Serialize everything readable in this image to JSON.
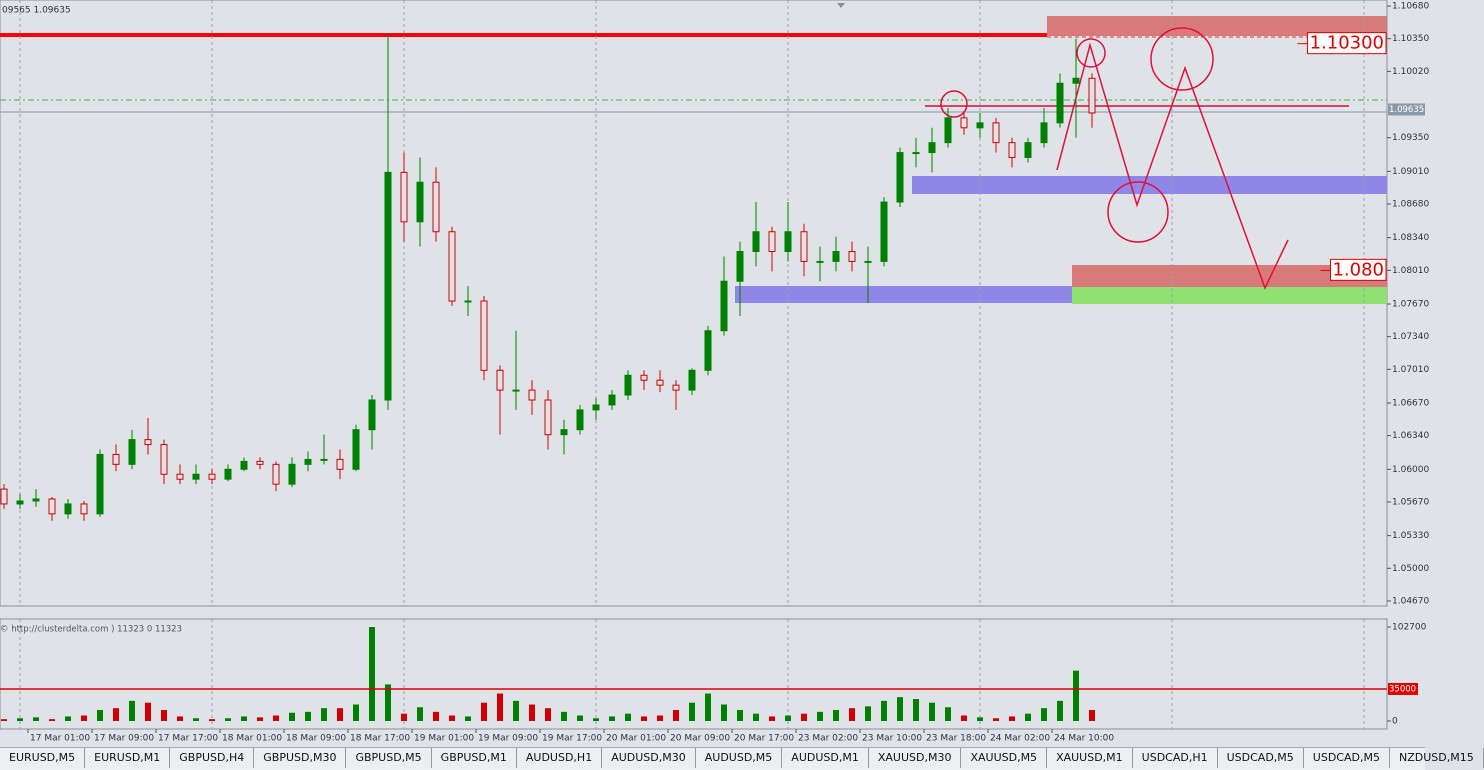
{
  "header": {
    "text": "09565 1.09635"
  },
  "chart_data": [
    {
      "type": "candlestick",
      "categories": [
        null,
        null,
        null,
        "17 Mar 01:00",
        null,
        null,
        null,
        "17 Mar 09:00",
        null,
        null,
        null,
        "17 Mar 17:00",
        null,
        null,
        null,
        "18 Mar 01:00",
        null,
        null,
        null,
        "18 Mar 09:00",
        null,
        null,
        null,
        "18 Mar 17:00",
        null,
        null,
        null,
        "19 Mar 01:00",
        null,
        null,
        null,
        "19 Mar 09:00",
        null,
        null,
        null,
        "19 Mar 17:00",
        null,
        null,
        null,
        "20 Mar 01:00",
        null,
        null,
        null,
        "20 Mar 09:00",
        null,
        null,
        null,
        "20 Mar 17:00",
        null,
        null,
        null,
        "23 Mar 02:00",
        null,
        null,
        null,
        "23 Mar 10:00",
        null,
        null,
        null,
        "23 Mar 18:00",
        null,
        null,
        null,
        "24 Mar 02:00",
        null,
        null,
        null,
        "24 Mar 10:00",
        null
      ],
      "open": [
        1.058,
        1.0565,
        1.0568,
        1.057,
        1.0555,
        1.0565,
        1.0555,
        1.0615,
        1.0605,
        1.063,
        1.0625,
        1.0595,
        1.059,
        1.0595,
        1.059,
        1.06,
        1.0608,
        1.0605,
        1.0585,
        1.0605,
        1.061,
        1.061,
        1.06,
        1.064,
        1.067,
        1.09,
        1.085,
        1.089,
        1.084,
        1.077,
        1.077,
        1.07,
        1.068,
        1.068,
        1.067,
        1.0635,
        1.064,
        1.066,
        1.0665,
        1.0675,
        1.0695,
        1.069,
        1.0685,
        1.068,
        1.07,
        1.074,
        1.079,
        1.082,
        1.084,
        1.082,
        1.084,
        1.081,
        1.081,
        1.082,
        1.081,
        1.081,
        1.087,
        1.092,
        1.092,
        1.093,
        1.0955,
        1.0945,
        1.095,
        1.093,
        1.0915,
        1.093,
        1.095,
        1.099,
        1.0995
      ],
      "high": [
        1.0585,
        1.0575,
        1.058,
        1.0572,
        1.057,
        1.0568,
        1.062,
        1.0625,
        1.064,
        1.0652,
        1.063,
        1.0605,
        1.0605,
        1.06,
        1.0605,
        1.0612,
        1.0612,
        1.0608,
        1.0612,
        1.0618,
        1.0635,
        1.062,
        1.0645,
        1.0675,
        1.104,
        1.092,
        1.0915,
        1.0905,
        1.0845,
        1.0785,
        1.0775,
        1.0705,
        1.074,
        1.069,
        1.068,
        1.065,
        1.0665,
        1.0672,
        1.068,
        1.07,
        1.07,
        1.07,
        1.069,
        1.0702,
        1.0745,
        1.0815,
        1.083,
        1.087,
        1.0845,
        1.087,
        1.0848,
        1.0825,
        1.0835,
        1.083,
        1.0825,
        1.0875,
        1.0925,
        1.0935,
        1.0945,
        1.0965,
        1.0962,
        1.096,
        1.0955,
        1.0935,
        1.0935,
        1.0965,
        1.1,
        1.1035,
        1.1
      ],
      "low": [
        1.056,
        1.056,
        1.0562,
        1.0548,
        1.055,
        1.0548,
        1.0552,
        1.0598,
        1.06,
        1.0615,
        1.0585,
        1.0585,
        1.0585,
        1.0585,
        1.0588,
        1.0598,
        1.06,
        1.0578,
        1.0582,
        1.0598,
        1.0605,
        1.059,
        1.0598,
        1.062,
        1.066,
        1.083,
        1.0825,
        1.083,
        1.0765,
        1.0755,
        1.069,
        1.0635,
        1.066,
        1.0655,
        1.062,
        1.0615,
        1.0635,
        1.065,
        1.066,
        1.067,
        1.068,
        1.0678,
        1.066,
        1.0675,
        1.0695,
        1.0735,
        1.0755,
        1.0805,
        1.08,
        1.081,
        1.0795,
        1.079,
        1.08,
        1.08,
        1.0768,
        1.0805,
        1.0865,
        1.0905,
        1.09,
        1.0925,
        1.0938,
        1.0935,
        1.092,
        1.0905,
        1.091,
        1.0925,
        1.0945,
        1.0935,
        1.0945
      ],
      "close": [
        1.0565,
        1.0568,
        1.057,
        1.0555,
        1.0565,
        1.0555,
        1.0615,
        1.0605,
        1.063,
        1.0625,
        1.0595,
        1.059,
        1.0595,
        1.059,
        1.06,
        1.0608,
        1.0605,
        1.0585,
        1.0605,
        1.061,
        1.061,
        1.06,
        1.064,
        1.067,
        1.09,
        1.085,
        1.089,
        1.084,
        1.077,
        1.077,
        1.07,
        1.068,
        1.068,
        1.067,
        1.0635,
        1.064,
        1.066,
        1.0665,
        1.0675,
        1.0695,
        1.069,
        1.0685,
        1.068,
        1.07,
        1.074,
        1.079,
        1.082,
        1.084,
        1.082,
        1.084,
        1.081,
        1.081,
        1.082,
        1.081,
        1.081,
        1.087,
        1.092,
        1.092,
        1.093,
        1.0955,
        1.0945,
        1.095,
        1.093,
        1.0915,
        1.093,
        1.095,
        1.099,
        1.0995,
        1.096
      ],
      "up_color": "#008000",
      "down_color": "#d00000",
      "ylim": [
        1.04619,
        1.10741
      ],
      "yticks": [
        {
          "value": 1.1068,
          "label": "1.10680"
        },
        {
          "value": 1.1035,
          "label": "1.10350"
        },
        {
          "value": 1.1002,
          "label": "1.10020"
        },
        {
          "value": 1.0935,
          "label": "1.09350"
        },
        {
          "value": 1.0901,
          "label": "1.09010"
        },
        {
          "value": 1.0868,
          "label": "1.08680"
        },
        {
          "value": 1.0834,
          "label": "1.08340"
        },
        {
          "value": 1.0801,
          "label": "1.08010"
        },
        {
          "value": 1.0767,
          "label": "1.07670"
        },
        {
          "value": 1.0734,
          "label": "1.07340"
        },
        {
          "value": 1.0701,
          "label": "1.07010"
        },
        {
          "value": 1.0667,
          "label": "1.06670"
        },
        {
          "value": 1.0634,
          "label": "1.06340"
        },
        {
          "value": 1.06,
          "label": "1.06000"
        },
        {
          "value": 1.0567,
          "label": "1.05670"
        },
        {
          "value": 1.0533,
          "label": "1.05330"
        },
        {
          "value": 1.05,
          "label": "1.05000"
        },
        {
          "value": 1.0467,
          "label": "1.04670"
        }
      ],
      "current_price": {
        "value": 1.09635,
        "label": "1.09635"
      },
      "price_labels": [
        {
          "value": 1.103,
          "label": "1.10300"
        },
        {
          "value": 1.0801,
          "label": "1.080"
        }
      ]
    },
    {
      "type": "bar",
      "subtitle": "© http://clusterdelta.com ) 11323 0 11323",
      "values": [
        2000,
        3000,
        4000,
        2000,
        5000,
        6000,
        12000,
        14000,
        22000,
        20000,
        12000,
        5000,
        3000,
        2000,
        3000,
        5000,
        4000,
        6000,
        9000,
        10000,
        14000,
        14000,
        18000,
        102700,
        40000,
        8000,
        15000,
        10000,
        6000,
        5000,
        20000,
        30000,
        22000,
        18000,
        14000,
        10000,
        6000,
        3000,
        5000,
        8000,
        5000,
        6000,
        12000,
        20000,
        30000,
        18000,
        12000,
        8000,
        5000,
        6000,
        8000,
        10000,
        12000,
        14000,
        16000,
        22000,
        26000,
        24000,
        20000,
        15000,
        6000,
        4000,
        3000,
        5000,
        8000,
        14000,
        22000,
        55000,
        12000
      ],
      "ylim": [
        -7650,
        110350
      ],
      "yticks": [
        0,
        102700
      ],
      "level": 35000
    }
  ],
  "tabs": [
    "EURUSD,M5",
    "EURUSD,M1",
    "GBPUSD,H4",
    "GBPUSD,M30",
    "GBPUSD,M5",
    "GBPUSD,M1",
    "AUDUSD,H1",
    "AUDUSD,M30",
    "AUDUSD,M5",
    "AUDUSD,M1",
    "XAUUSD,M30",
    "XAUUSD,M5",
    "XAUUSD,M1",
    "USDCAD,H1",
    "USDCAD,M5",
    "USDCAD,M5",
    "NZDUSD,M15"
  ]
}
